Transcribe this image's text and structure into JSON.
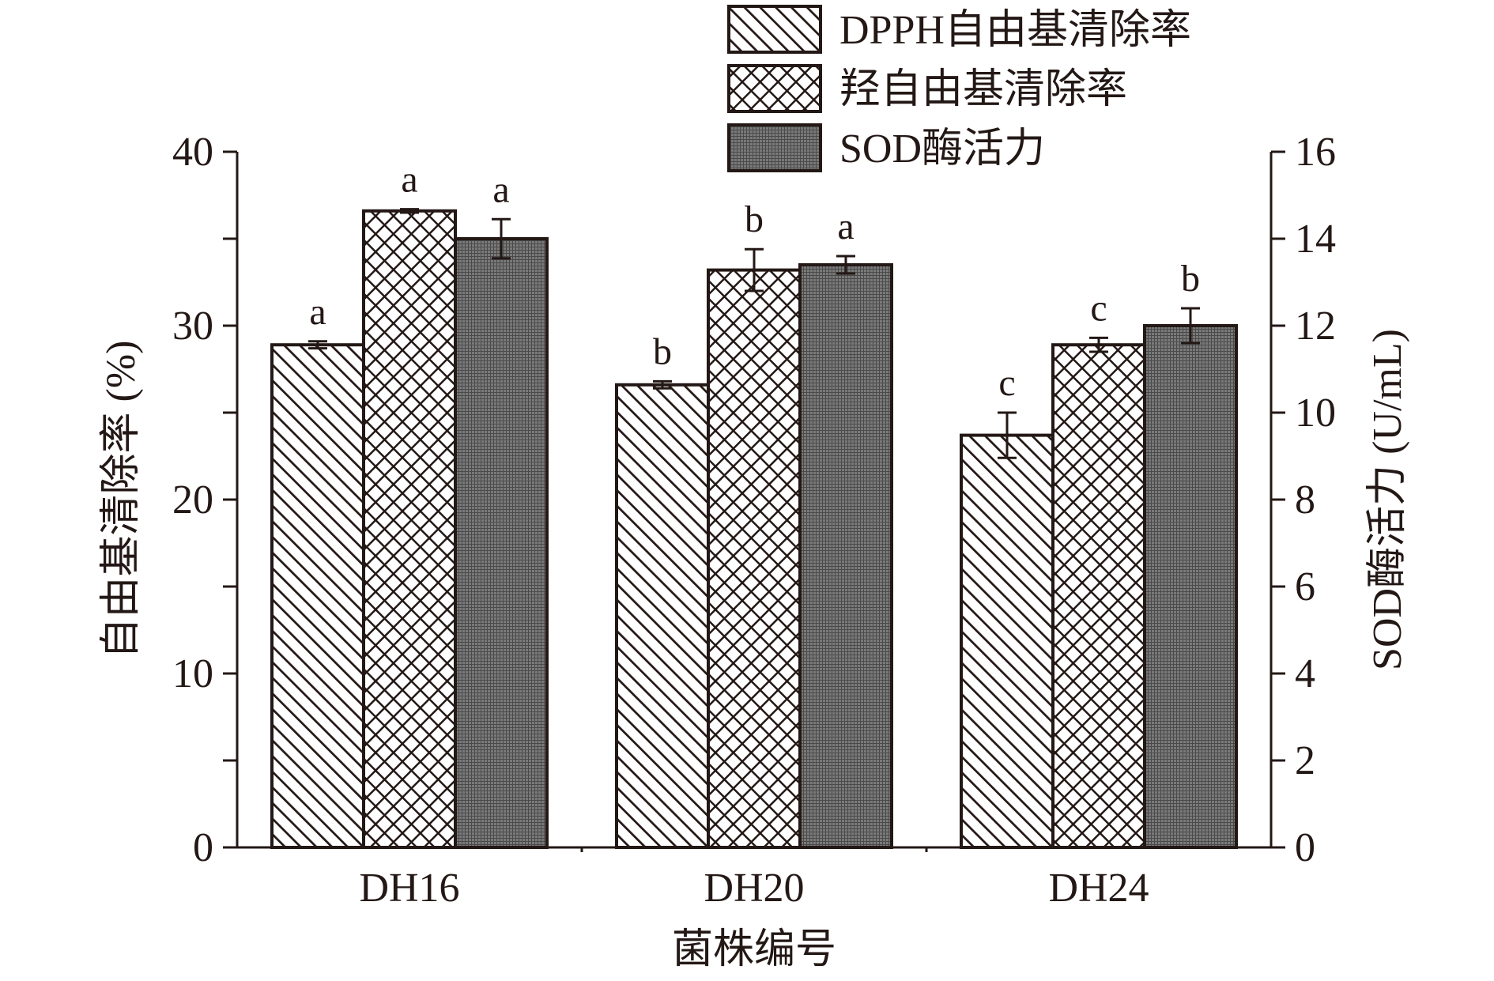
{
  "chart_data": {
    "type": "bar",
    "categories": [
      "DH16",
      "DH20",
      "DH24"
    ],
    "xlabel": "菌株编号",
    "ylabel_left": "自由基清除率 (%)",
    "ylabel_right": "SOD酶活力 (U/mL)",
    "ylim_left": [
      0,
      40
    ],
    "ylim_right": [
      0,
      16
    ],
    "yticks_left": [
      "0",
      "10",
      "20",
      "30",
      "40"
    ],
    "yticks_right": [
      "0",
      "2",
      "4",
      "6",
      "8",
      "10",
      "12",
      "14",
      "16"
    ],
    "grid": false,
    "legend_position": "top-right",
    "series": [
      {
        "name": "DPPH自由基清除率",
        "axis": "left",
        "pattern": "diagonal-hatch",
        "values": [
          28.9,
          26.6,
          23.7
        ],
        "errors": [
          0.2,
          0.2,
          1.3
        ],
        "labels": [
          "a",
          "b",
          "c"
        ]
      },
      {
        "name": "羟自由基清除率",
        "axis": "left",
        "pattern": "cross-hatch",
        "values": [
          36.6,
          33.2,
          28.9
        ],
        "errors": [
          0.1,
          1.2,
          0.4
        ],
        "labels": [
          "a",
          "b",
          "c"
        ]
      },
      {
        "name": "SOD酶活力",
        "axis": "right",
        "pattern": "dense-grid",
        "values": [
          14.0,
          13.4,
          12.0
        ],
        "errors": [
          0.45,
          0.2,
          0.4
        ],
        "labels": [
          "a",
          "a",
          "b"
        ]
      }
    ],
    "colors": {
      "stroke": "#231815",
      "hatch": "#231815",
      "fill_background": "#ffffff"
    }
  }
}
